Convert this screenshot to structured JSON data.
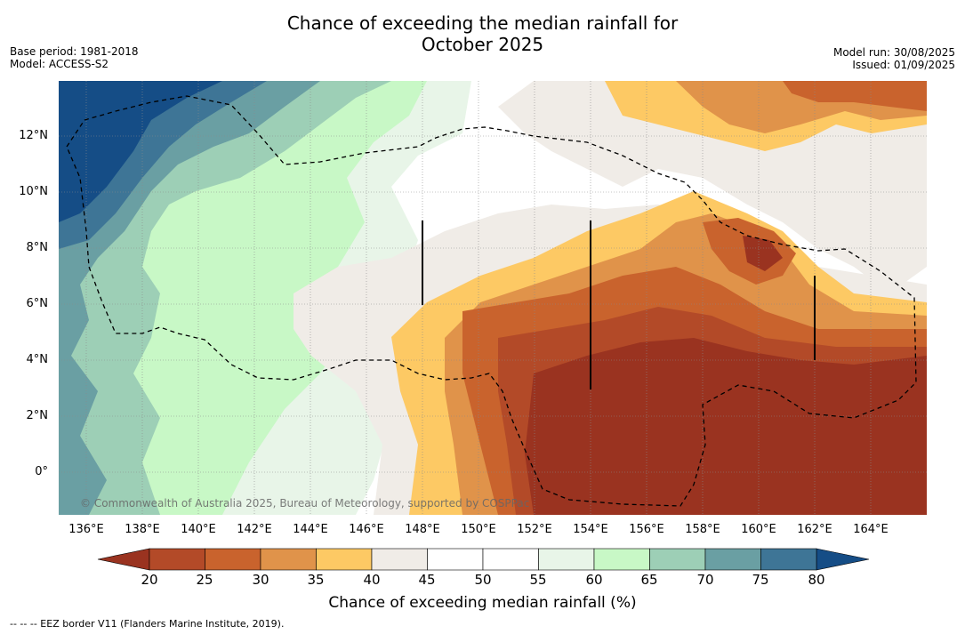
{
  "title_line1": "Chance of exceeding the median rainfall for",
  "title_line2": "October 2025",
  "base_period": "Base period: 1981-2018",
  "model": "Model: ACCESS-S2",
  "model_run": "Model run: 30/08/2025",
  "issued": "Issued: 01/09/2025",
  "copyright": "© Commonwealth of Australia 2025, Bureau of Meteorology, supported by COSPPac",
  "footnote": "--  --  -- EEZ border V11 (Flanders Marine Institute, 2019).",
  "map": {
    "lat_labels": [
      "12°N",
      "10°N",
      "8°N",
      "6°N",
      "4°N",
      "2°N",
      "0°"
    ],
    "lon_labels": [
      "136°E",
      "138°E",
      "140°E",
      "142°E",
      "144°E",
      "146°E",
      "148°E",
      "150°E",
      "152°E",
      "154°E",
      "156°E",
      "158°E",
      "160°E",
      "162°E",
      "164°E"
    ]
  },
  "colorbar": {
    "label": "Chance of exceeding median rainfall (%)",
    "ticks": [
      "20",
      "25",
      "30",
      "35",
      "40",
      "45",
      "50",
      "55",
      "60",
      "65",
      "70",
      "75",
      "80"
    ],
    "colors": [
      "#9a3320",
      "#b34a28",
      "#c9632d",
      "#e0934a",
      "#fdc964",
      "#f0ece7",
      "#ffffff",
      "#ffffff",
      "#e8f5e8",
      "#c8f8c6",
      "#9dcfb6",
      "#6a9fa3",
      "#3e7596",
      "#154d86"
    ]
  }
}
